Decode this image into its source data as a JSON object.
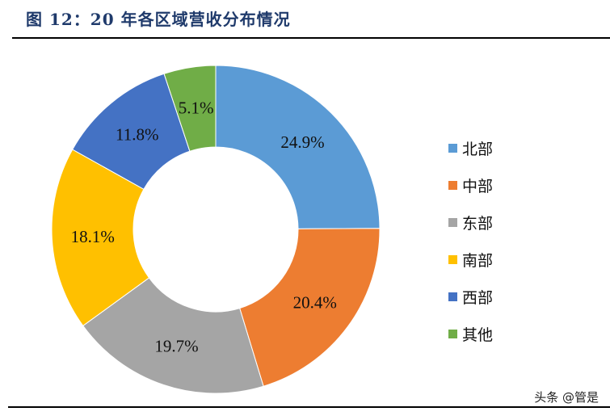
{
  "title": "图 12：20 年各区域营收分布情况",
  "watermark": "头条 @管是",
  "chart_data": {
    "type": "pie",
    "subtype": "donut",
    "title": "图 12：20 年各区域营收分布情况",
    "categories": [
      "北部",
      "中部",
      "东部",
      "南部",
      "西部",
      "其他"
    ],
    "values": [
      24.9,
      20.4,
      19.7,
      18.1,
      11.8,
      5.1
    ],
    "labels": [
      "24.9%",
      "20.4%",
      "19.7%",
      "18.1%",
      "11.8%",
      "5.1%"
    ],
    "colors": [
      "#5b9bd5",
      "#ed7d31",
      "#a5a5a5",
      "#ffc000",
      "#4472c4",
      "#70ad47"
    ],
    "unit": "%",
    "start_angle_deg": 0,
    "direction": "clockwise",
    "legend_position": "right"
  },
  "legend": {
    "items": [
      {
        "label": "北部",
        "color": "#5b9bd5"
      },
      {
        "label": "中部",
        "color": "#ed7d31"
      },
      {
        "label": "东部",
        "color": "#a5a5a5"
      },
      {
        "label": "南部",
        "color": "#ffc000"
      },
      {
        "label": "西部",
        "color": "#4472c4"
      },
      {
        "label": "其他",
        "color": "#70ad47"
      }
    ]
  }
}
